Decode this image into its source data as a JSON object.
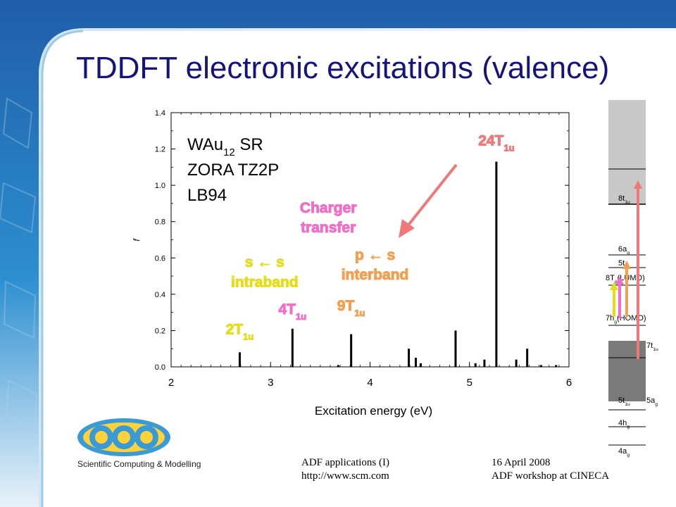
{
  "slide": {
    "title": "TDDFT electronic excitations (valence)",
    "footer_left_line1": "ADF applications (I)",
    "footer_left_line2": "http://www.scm.com",
    "footer_right_line1": "16 April 2008",
    "footer_right_line2": "ADF workshop at CINECA",
    "logo_tagline": "Scientific Computing & Modelling",
    "colors": {
      "title": "#14147a",
      "accent_blue": "#3a9ad6",
      "pink": "#f06ec8",
      "orange": "#f0a050",
      "salmon": "#f07878",
      "yellow": "#e6dc1e"
    }
  },
  "chart_data": {
    "type": "bar",
    "xlabel": "Excitation energy (eV)",
    "ylabel": "f",
    "xlim": [
      2,
      6
    ],
    "ylim": [
      0.0,
      1.4
    ],
    "xticks": [
      "2",
      "3",
      "4",
      "5",
      "6"
    ],
    "yticks": [
      "0.0",
      "0.2",
      "0.4",
      "0.6",
      "0.8",
      "1.0",
      "1.2",
      "1.4"
    ],
    "grid": false,
    "info_lines": [
      {
        "main": "WAu",
        "sub": "12",
        "rest": " SR"
      },
      {
        "main": "ZORA TZ2P",
        "sub": "",
        "rest": ""
      },
      {
        "main": "LB94",
        "sub": "",
        "rest": ""
      }
    ],
    "series": [
      {
        "x": [
          2.69,
          3.22,
          3.68,
          3.81,
          4.39,
          4.46,
          4.51,
          4.86,
          5.06,
          5.15,
          5.27,
          5.47,
          5.58,
          5.72,
          5.87
        ],
        "y": [
          0.08,
          0.21,
          0.01,
          0.18,
          0.1,
          0.05,
          0.02,
          0.2,
          0.02,
          0.04,
          1.13,
          0.04,
          0.1,
          0.01,
          0.01
        ]
      }
    ],
    "annotations": [
      {
        "main": "2T",
        "sub": "1u",
        "color": "#e6dc1e",
        "x": 2.69,
        "y": 0.18
      },
      {
        "main": "4T",
        "sub": "1u",
        "color": "#f06ec8",
        "x": 3.22,
        "y": 0.29
      },
      {
        "main": "9T",
        "sub": "1u",
        "color": "#f0a050",
        "x": 3.81,
        "y": 0.31
      },
      {
        "main": "24T",
        "sub": "1u",
        "color": "#f07878",
        "x": 5.27,
        "y": 1.22
      },
      {
        "main": "s ← s",
        "sub": "",
        "color": "#e6dc1e",
        "x": 2.94,
        "y": 0.55
      },
      {
        "main": "intraband",
        "sub": "",
        "color": "#e6dc1e",
        "x": 2.94,
        "y": 0.44
      },
      {
        "main": "Charger",
        "sub": "",
        "color": "#f06ec8",
        "x": 3.58,
        "y": 0.85
      },
      {
        "main": "transfer",
        "sub": "",
        "color": "#f06ec8",
        "x": 3.58,
        "y": 0.74
      },
      {
        "main": "p ← s",
        "sub": "",
        "color": "#f0a050",
        "x": 4.05,
        "y": 0.59
      },
      {
        "main": "interband",
        "sub": "",
        "color": "#f0a050",
        "x": 4.05,
        "y": 0.48
      }
    ]
  },
  "orbital_diagram": {
    "levels": [
      {
        "main": "8t",
        "sub": "1u",
        "rest": ""
      },
      {
        "main": "6a",
        "sub": "g",
        "rest": ""
      },
      {
        "main": "5t",
        "sub": "2",
        "rest": ""
      },
      {
        "main": "8T",
        "sub": "g",
        "rest": "(LUMO)"
      },
      {
        "main": "7h",
        "sub": "g",
        "rest": "(HOMO)"
      },
      {
        "main": "7t",
        "sub": "1u",
        "rest": ""
      },
      {
        "main": "5t",
        "sub": "1u",
        "rest": ""
      },
      {
        "main": "5a",
        "sub": "g",
        "rest": ""
      },
      {
        "main": "4h",
        "sub": "g",
        "rest": ""
      },
      {
        "main": "4a",
        "sub": "g",
        "rest": ""
      }
    ]
  }
}
